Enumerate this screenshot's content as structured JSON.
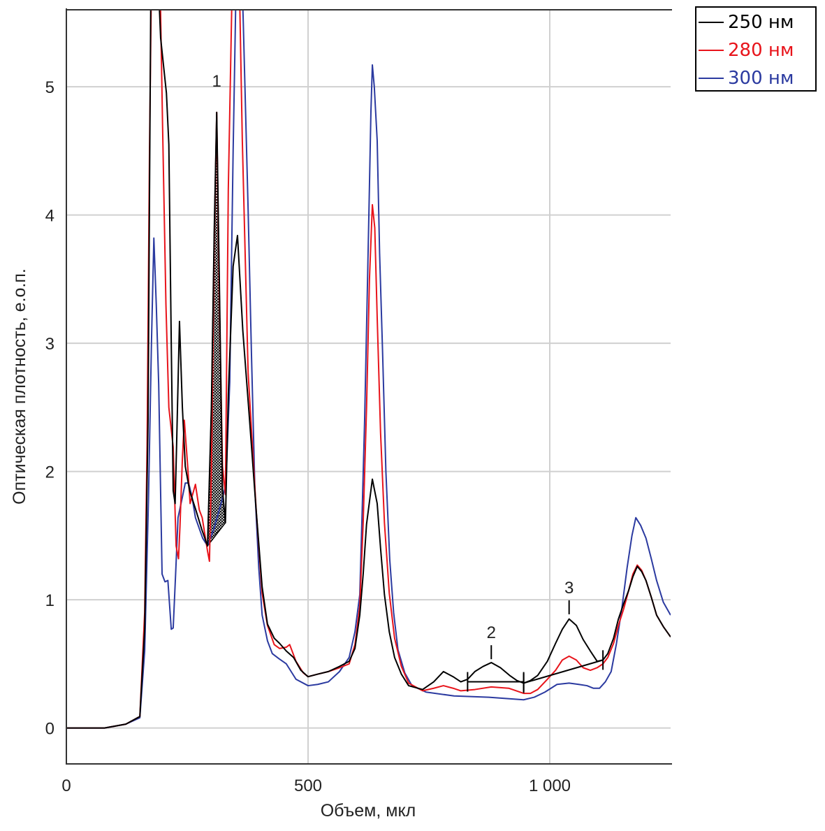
{
  "chart_data": {
    "type": "line",
    "title": "",
    "xlabel": "Объем, мкл",
    "ylabel": "Оптическая плотность, е.о.п.",
    "xlim": [
      0,
      1250
    ],
    "ylim": [
      -0.28,
      5.6
    ],
    "xticks": [
      {
        "v": 0,
        "label": "0"
      },
      {
        "v": 500,
        "label": "500"
      },
      {
        "v": 1000,
        "label": "1 000"
      }
    ],
    "yticks": [
      {
        "v": 0,
        "label": "0"
      },
      {
        "v": 1,
        "label": "1"
      },
      {
        "v": 2,
        "label": "2"
      },
      {
        "v": 3,
        "label": "3"
      },
      {
        "v": 4,
        "label": "4"
      },
      {
        "v": 5,
        "label": "5"
      }
    ],
    "grid": true,
    "legend_position": "top-right, outside",
    "series": [
      {
        "name": "250 нм",
        "color": "#000000",
        "points": [
          [
            0,
            0
          ],
          [
            79,
            0
          ],
          [
            123,
            0.03
          ],
          [
            152,
            0.09
          ],
          [
            162,
            0.77
          ],
          [
            169,
            2.4
          ],
          [
            176,
            6.5
          ],
          [
            186,
            6.2
          ],
          [
            195,
            5.38
          ],
          [
            207,
            4.95
          ],
          [
            212,
            4.55
          ],
          [
            217,
            3.0
          ],
          [
            221,
            1.85
          ],
          [
            225,
            1.75
          ],
          [
            228,
            2.2
          ],
          [
            234,
            3.17
          ],
          [
            240,
            2.5
          ],
          [
            246,
            2.04
          ],
          [
            255,
            1.85
          ],
          [
            267,
            1.71
          ],
          [
            280,
            1.55
          ],
          [
            292,
            1.42
          ],
          [
            300,
            2.5
          ],
          [
            306,
            3.9
          ],
          [
            311,
            4.8
          ],
          [
            316,
            3.6
          ],
          [
            323,
            1.86
          ],
          [
            329,
            1.6
          ],
          [
            335,
            2.6
          ],
          [
            345,
            3.6
          ],
          [
            354,
            3.84
          ],
          [
            365,
            3.1
          ],
          [
            379,
            2.4
          ],
          [
            393,
            1.68
          ],
          [
            405,
            1.1
          ],
          [
            416,
            0.81
          ],
          [
            430,
            0.7
          ],
          [
            441,
            0.66
          ],
          [
            455,
            0.6
          ],
          [
            470,
            0.55
          ],
          [
            485,
            0.45
          ],
          [
            500,
            0.4
          ],
          [
            520,
            0.42
          ],
          [
            542,
            0.44
          ],
          [
            565,
            0.48
          ],
          [
            585,
            0.52
          ],
          [
            597,
            0.62
          ],
          [
            607,
            0.88
          ],
          [
            614,
            1.2
          ],
          [
            621,
            1.59
          ],
          [
            633,
            1.94
          ],
          [
            643,
            1.75
          ],
          [
            650,
            1.4
          ],
          [
            658,
            1.04
          ],
          [
            668,
            0.75
          ],
          [
            679,
            0.55
          ],
          [
            693,
            0.42
          ],
          [
            708,
            0.33
          ],
          [
            737,
            0.3
          ],
          [
            760,
            0.36
          ],
          [
            780,
            0.44
          ],
          [
            800,
            0.4
          ],
          [
            816,
            0.36
          ],
          [
            830,
            0.38
          ],
          [
            845,
            0.44
          ],
          [
            862,
            0.48
          ],
          [
            879,
            0.51
          ],
          [
            898,
            0.47
          ],
          [
            917,
            0.41
          ],
          [
            932,
            0.37
          ],
          [
            946,
            0.35
          ],
          [
            960,
            0.37
          ],
          [
            975,
            0.41
          ],
          [
            995,
            0.52
          ],
          [
            1012,
            0.66
          ],
          [
            1026,
            0.77
          ],
          [
            1040,
            0.85
          ],
          [
            1055,
            0.8
          ],
          [
            1069,
            0.69
          ],
          [
            1084,
            0.6
          ],
          [
            1098,
            0.52
          ],
          [
            1110,
            0.53
          ],
          [
            1120,
            0.58
          ],
          [
            1132,
            0.7
          ],
          [
            1142,
            0.85
          ],
          [
            1153,
            0.97
          ],
          [
            1163,
            1.07
          ],
          [
            1172,
            1.18
          ],
          [
            1181,
            1.26
          ],
          [
            1190,
            1.22
          ],
          [
            1199,
            1.15
          ],
          [
            1210,
            1.02
          ],
          [
            1221,
            0.88
          ],
          [
            1235,
            0.79
          ],
          [
            1250,
            0.71
          ]
        ]
      },
      {
        "name": "280 нм",
        "color": "#e8141b",
        "points": [
          [
            0,
            0
          ],
          [
            79,
            0
          ],
          [
            123,
            0.03
          ],
          [
            152,
            0.09
          ],
          [
            162,
            0.9
          ],
          [
            167,
            2.2
          ],
          [
            172,
            4.5
          ],
          [
            178,
            6.5
          ],
          [
            186,
            6.5
          ],
          [
            193,
            6.0
          ],
          [
            199,
            4.7
          ],
          [
            206,
            3.3
          ],
          [
            212,
            2.5
          ],
          [
            221,
            2.19
          ],
          [
            227,
            1.42
          ],
          [
            232,
            1.32
          ],
          [
            235,
            1.57
          ],
          [
            240,
            2.1
          ],
          [
            244,
            2.4
          ],
          [
            251,
            2.04
          ],
          [
            256,
            1.75
          ],
          [
            267,
            1.9
          ],
          [
            275,
            1.7
          ],
          [
            281,
            1.64
          ],
          [
            292,
            1.38
          ],
          [
            296,
            1.3
          ],
          [
            300,
            2.0
          ],
          [
            306,
            3.8
          ],
          [
            311,
            4.8
          ],
          [
            316,
            3.4
          ],
          [
            323,
            2.04
          ],
          [
            329,
            1.82
          ],
          [
            335,
            4.2
          ],
          [
            342,
            5.6
          ],
          [
            348,
            6.5
          ],
          [
            356,
            6.2
          ],
          [
            364,
            4.58
          ],
          [
            376,
            2.77
          ],
          [
            393,
            1.68
          ],
          [
            405,
            1.05
          ],
          [
            416,
            0.8
          ],
          [
            430,
            0.65
          ],
          [
            441,
            0.62
          ],
          [
            455,
            0.63
          ],
          [
            462,
            0.65
          ],
          [
            475,
            0.52
          ],
          [
            490,
            0.43
          ],
          [
            500,
            0.4
          ],
          [
            520,
            0.42
          ],
          [
            542,
            0.44
          ],
          [
            565,
            0.47
          ],
          [
            585,
            0.5
          ],
          [
            597,
            0.65
          ],
          [
            607,
            0.95
          ],
          [
            614,
            1.6
          ],
          [
            621,
            2.5
          ],
          [
            627,
            3.5
          ],
          [
            633,
            4.08
          ],
          [
            638,
            3.9
          ],
          [
            643,
            3.2
          ],
          [
            650,
            2.3
          ],
          [
            658,
            1.6
          ],
          [
            668,
            1.05
          ],
          [
            679,
            0.7
          ],
          [
            693,
            0.48
          ],
          [
            708,
            0.35
          ],
          [
            737,
            0.29
          ],
          [
            760,
            0.31
          ],
          [
            780,
            0.33
          ],
          [
            800,
            0.31
          ],
          [
            816,
            0.29
          ],
          [
            845,
            0.3
          ],
          [
            879,
            0.32
          ],
          [
            915,
            0.31
          ],
          [
            946,
            0.27
          ],
          [
            960,
            0.27
          ],
          [
            975,
            0.3
          ],
          [
            995,
            0.38
          ],
          [
            1012,
            0.45
          ],
          [
            1026,
            0.53
          ],
          [
            1040,
            0.56
          ],
          [
            1055,
            0.53
          ],
          [
            1069,
            0.47
          ],
          [
            1084,
            0.45
          ],
          [
            1098,
            0.47
          ],
          [
            1110,
            0.5
          ],
          [
            1120,
            0.55
          ],
          [
            1132,
            0.66
          ],
          [
            1142,
            0.8
          ],
          [
            1153,
            0.93
          ],
          [
            1163,
            1.07
          ],
          [
            1172,
            1.2
          ],
          [
            1181,
            1.27
          ],
          [
            1190,
            1.23
          ],
          [
            1199,
            1.15
          ],
          [
            1210,
            1.02
          ],
          [
            1221,
            0.88
          ],
          [
            1235,
            0.79
          ],
          [
            1250,
            0.71
          ]
        ]
      },
      {
        "name": "300 нм",
        "color": "#2b3aa0",
        "points": [
          [
            0,
            0
          ],
          [
            79,
            0
          ],
          [
            123,
            0.03
          ],
          [
            152,
            0.08
          ],
          [
            162,
            0.6
          ],
          [
            170,
            1.8
          ],
          [
            176,
            3.0
          ],
          [
            181,
            3.82
          ],
          [
            186,
            3.3
          ],
          [
            191,
            2.68
          ],
          [
            198,
            1.2
          ],
          [
            204,
            1.14
          ],
          [
            210,
            1.15
          ],
          [
            217,
            0.77
          ],
          [
            221,
            0.78
          ],
          [
            226,
            1.2
          ],
          [
            231,
            1.64
          ],
          [
            240,
            1.8
          ],
          [
            246,
            1.91
          ],
          [
            253,
            1.91
          ],
          [
            260,
            1.8
          ],
          [
            267,
            1.64
          ],
          [
            282,
            1.48
          ],
          [
            292,
            1.42
          ],
          [
            305,
            1.55
          ],
          [
            320,
            1.75
          ],
          [
            330,
            1.9
          ],
          [
            338,
            2.7
          ],
          [
            345,
            4.5
          ],
          [
            352,
            6.0
          ],
          [
            358,
            6.5
          ],
          [
            366,
            5.5
          ],
          [
            376,
            4.04
          ],
          [
            383,
            2.9
          ],
          [
            390,
            1.86
          ],
          [
            398,
            1.25
          ],
          [
            405,
            0.88
          ],
          [
            416,
            0.68
          ],
          [
            426,
            0.58
          ],
          [
            440,
            0.54
          ],
          [
            455,
            0.5
          ],
          [
            475,
            0.38
          ],
          [
            500,
            0.33
          ],
          [
            520,
            0.34
          ],
          [
            542,
            0.36
          ],
          [
            565,
            0.44
          ],
          [
            585,
            0.55
          ],
          [
            597,
            0.75
          ],
          [
            607,
            1.04
          ],
          [
            612,
            1.7
          ],
          [
            617,
            2.4
          ],
          [
            622,
            3.3
          ],
          [
            626,
            4.04
          ],
          [
            630,
            4.8
          ],
          [
            633,
            5.17
          ],
          [
            637,
            5.0
          ],
          [
            643,
            4.58
          ],
          [
            648,
            3.7
          ],
          [
            654,
            2.95
          ],
          [
            661,
            2.0
          ],
          [
            669,
            1.31
          ],
          [
            677,
            0.9
          ],
          [
            686,
            0.61
          ],
          [
            700,
            0.43
          ],
          [
            715,
            0.33
          ],
          [
            744,
            0.28
          ],
          [
            802,
            0.25
          ],
          [
            874,
            0.24
          ],
          [
            946,
            0.22
          ],
          [
            968,
            0.24
          ],
          [
            990,
            0.28
          ],
          [
            1015,
            0.34
          ],
          [
            1040,
            0.35
          ],
          [
            1060,
            0.34
          ],
          [
            1077,
            0.33
          ],
          [
            1090,
            0.31
          ],
          [
            1103,
            0.31
          ],
          [
            1115,
            0.36
          ],
          [
            1127,
            0.44
          ],
          [
            1138,
            0.66
          ],
          [
            1149,
            0.93
          ],
          [
            1160,
            1.25
          ],
          [
            1170,
            1.5
          ],
          [
            1178,
            1.64
          ],
          [
            1188,
            1.58
          ],
          [
            1199,
            1.48
          ],
          [
            1210,
            1.32
          ],
          [
            1221,
            1.15
          ],
          [
            1235,
            0.98
          ],
          [
            1250,
            0.88
          ]
        ]
      }
    ],
    "annotations": [
      {
        "label": "1",
        "x": 311,
        "y": 5.0
      },
      {
        "label": "2",
        "x": 879,
        "y": 0.7
      },
      {
        "label": "3",
        "x": 1040,
        "y": 1.05
      }
    ],
    "shaded_peak": {
      "label": "1",
      "from": 292,
      "to": 329
    },
    "baselines": [
      {
        "label": "2",
        "from": [
          830,
          0.36
        ],
        "to": [
          946,
          0.36
        ]
      },
      {
        "label": "3",
        "from": [
          946,
          0.35
        ],
        "to": [
          1110,
          0.53
        ]
      }
    ]
  }
}
